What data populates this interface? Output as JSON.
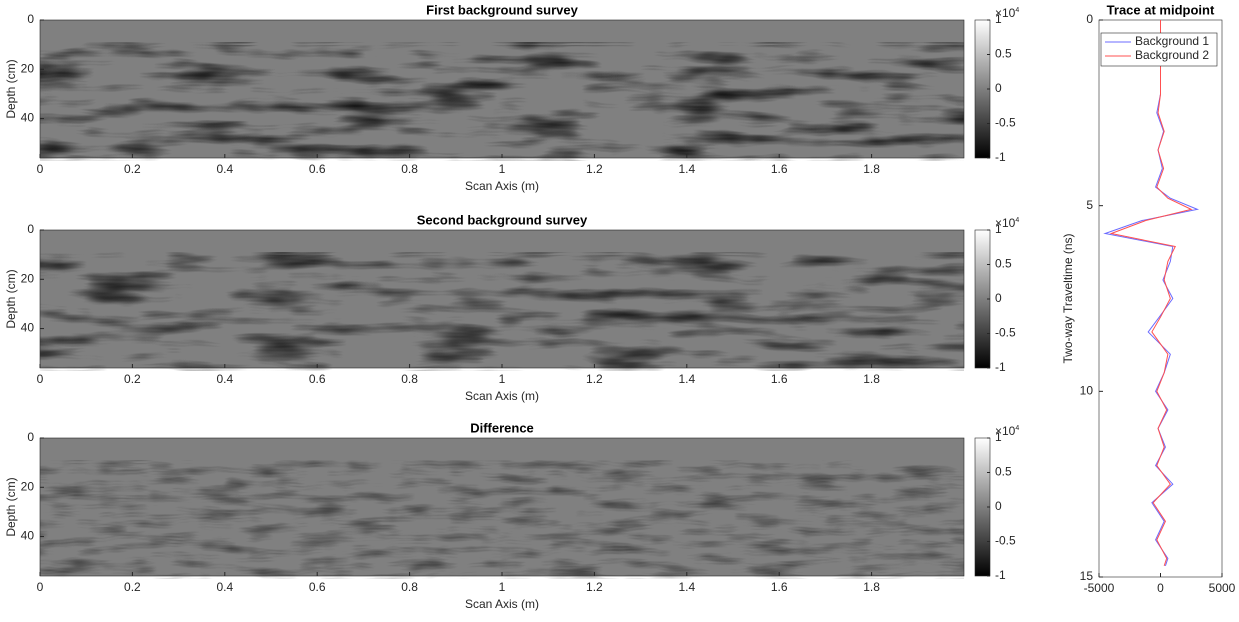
{
  "chart_data": [
    {
      "type": "heatmap",
      "title": "First background survey",
      "xlabel": "Scan Axis (m)",
      "ylabel": "Depth (cm)",
      "xlim": [
        0,
        2
      ],
      "xticks": [
        0,
        0.2,
        0.4,
        0.6,
        0.8,
        1,
        1.2,
        1.4,
        1.6,
        1.8
      ],
      "ylim": [
        0,
        56
      ],
      "yticks": [
        0,
        20,
        40
      ],
      "colorbar": {
        "clim": [
          -1,
          1
        ],
        "ticks": [
          1,
          0.5,
          0,
          -0.5,
          -1
        ],
        "multiplier_base": "×10",
        "multiplier_exp": "4"
      }
    },
    {
      "type": "heatmap",
      "title": "Second background survey",
      "xlabel": "Scan Axis (m)",
      "ylabel": "Depth (cm)",
      "xlim": [
        0,
        2
      ],
      "xticks": [
        0,
        0.2,
        0.4,
        0.6,
        0.8,
        1,
        1.2,
        1.4,
        1.6,
        1.8
      ],
      "ylim": [
        0,
        56
      ],
      "yticks": [
        0,
        20,
        40
      ],
      "colorbar": {
        "clim": [
          -1,
          1
        ],
        "ticks": [
          1,
          0.5,
          0,
          -0.5,
          -1
        ],
        "multiplier_base": "×10",
        "multiplier_exp": "4"
      }
    },
    {
      "type": "heatmap",
      "title": "Difference",
      "xlabel": "Scan Axis (m)",
      "ylabel": "Depth (cm)",
      "xlim": [
        0,
        2
      ],
      "xticks": [
        0,
        0.2,
        0.4,
        0.6,
        0.8,
        1,
        1.2,
        1.4,
        1.6,
        1.8
      ],
      "ylim": [
        0,
        56
      ],
      "yticks": [
        0,
        20,
        40
      ],
      "colorbar": {
        "clim": [
          -1,
          1
        ],
        "ticks": [
          1,
          0.5,
          0,
          -0.5,
          -1
        ],
        "multiplier_base": "×10",
        "multiplier_exp": "4"
      }
    },
    {
      "type": "line",
      "title": "Trace at midpoint",
      "ylabel": "Two-way Traveltime (ns)",
      "xlim": [
        -5000,
        5000
      ],
      "xticks": [
        -5000,
        0,
        5000
      ],
      "ylim": [
        0,
        15
      ],
      "yticks": [
        0,
        5,
        10,
        15
      ],
      "y_reversed": true,
      "legend": "top-left",
      "y": [
        0,
        2,
        2.5,
        3,
        3.5,
        4,
        4.5,
        4.8,
        5.1,
        5.4,
        5.75,
        6.1,
        6.5,
        7,
        7.5,
        8,
        8.4,
        9,
        9.5,
        10,
        10.5,
        11,
        11.5,
        12,
        12.5,
        13,
        13.5,
        14,
        14.5,
        14.7
      ],
      "series": [
        {
          "name": "Background 1",
          "color": "#6b6bff",
          "values": [
            0,
            0,
            -300,
            250,
            -200,
            150,
            -400,
            800,
            3000,
            -1500,
            -4500,
            1000,
            800,
            200,
            1000,
            -100,
            -1000,
            800,
            300,
            -400,
            600,
            -200,
            400,
            -400,
            1000,
            -700,
            300,
            -400,
            600,
            400
          ]
        },
        {
          "name": "Background 2",
          "color": "#ff5050",
          "values": [
            0,
            0,
            -200,
            300,
            -200,
            250,
            -300,
            600,
            2500,
            -1200,
            -4000,
            1200,
            600,
            300,
            800,
            0,
            -700,
            600,
            300,
            -300,
            500,
            -200,
            300,
            -300,
            800,
            -600,
            400,
            -300,
            500,
            300
          ]
        }
      ]
    }
  ]
}
